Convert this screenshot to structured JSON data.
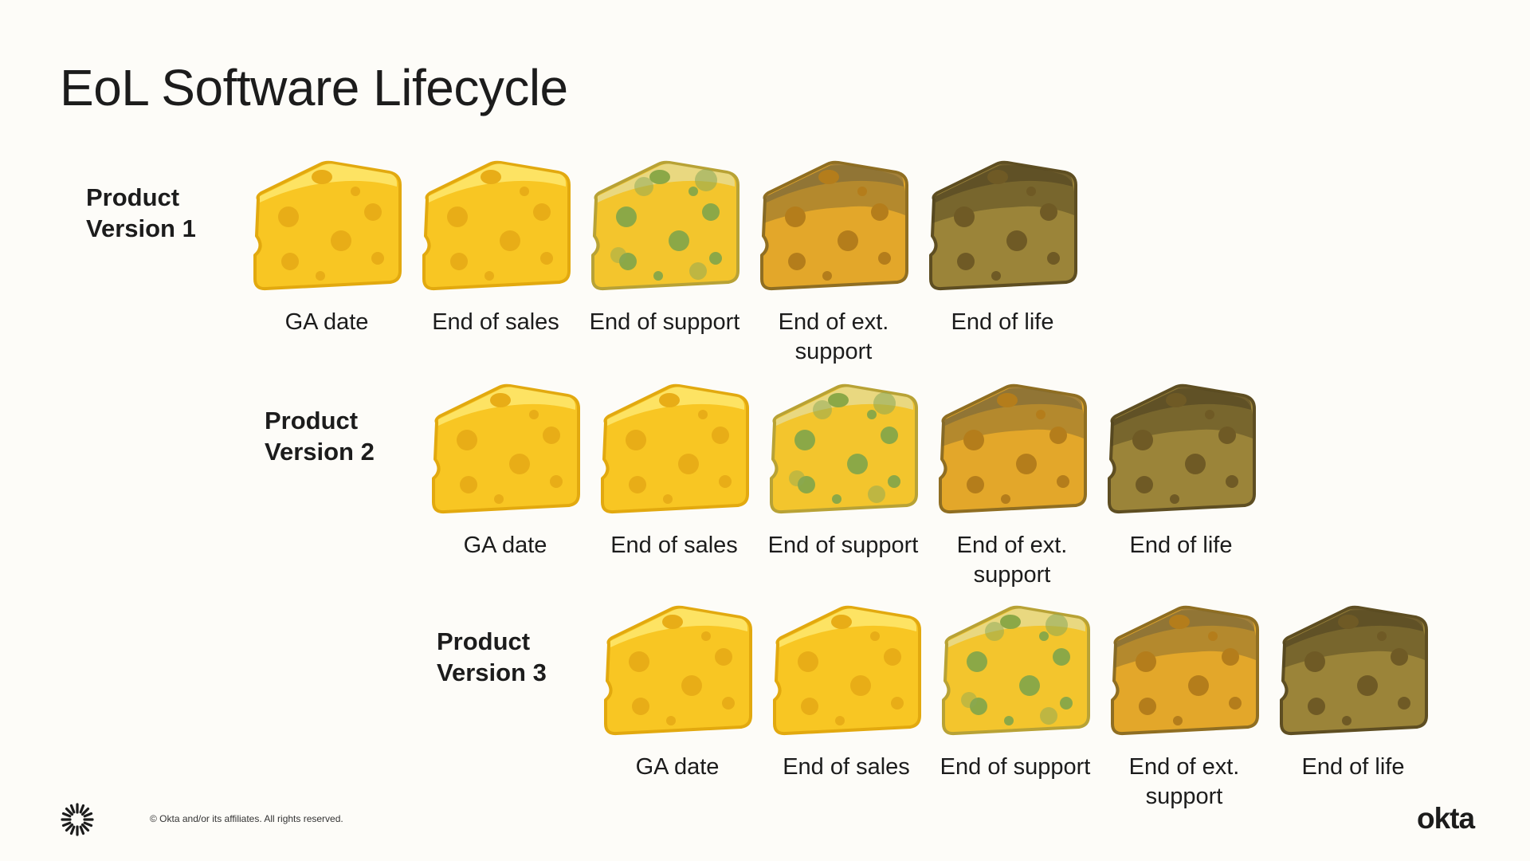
{
  "slide": {
    "title": "EoL Software Lifecycle",
    "copyright": "© Okta and/or its affiliates. All rights reserved.",
    "brand": "okta"
  },
  "stage_colors": {
    "fresh": "#f7c21e",
    "molding": "#e9c435",
    "aging": "#d29a22",
    "rotten": "#8f7a35"
  },
  "rows": [
    {
      "label_line1": "Product",
      "label_line2": "Version 1",
      "stages": [
        {
          "caption": "GA date",
          "stage": "fresh"
        },
        {
          "caption": "End of sales",
          "stage": "fresh"
        },
        {
          "caption": "End of support",
          "stage": "molding"
        },
        {
          "caption": "End of ext.\nsupport",
          "stage": "aging"
        },
        {
          "caption": "End of life",
          "stage": "rotten"
        }
      ]
    },
    {
      "label_line1": "Product",
      "label_line2": "Version 2",
      "stages": [
        {
          "caption": "GA date",
          "stage": "fresh"
        },
        {
          "caption": "End of sales",
          "stage": "fresh"
        },
        {
          "caption": "End of support",
          "stage": "molding"
        },
        {
          "caption": "End of ext.\nsupport",
          "stage": "aging"
        },
        {
          "caption": "End of life",
          "stage": "rotten"
        }
      ]
    },
    {
      "label_line1": "Product",
      "label_line2": "Version 3",
      "stages": [
        {
          "caption": "GA date",
          "stage": "fresh"
        },
        {
          "caption": "End of sales",
          "stage": "fresh"
        },
        {
          "caption": "End of support",
          "stage": "molding"
        },
        {
          "caption": "End of ext.\nsupport",
          "stage": "aging"
        },
        {
          "caption": "End of life",
          "stage": "rotten"
        }
      ]
    }
  ]
}
